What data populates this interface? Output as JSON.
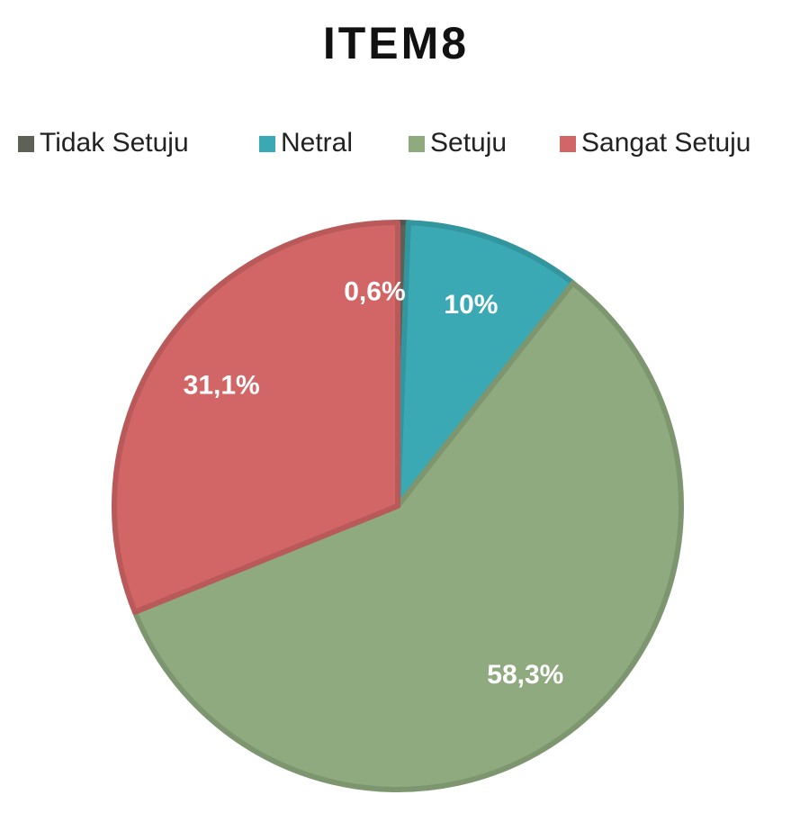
{
  "chart_data": {
    "type": "pie",
    "title": "ITEM8",
    "categories": [
      "Tidak Setuju",
      "Netral",
      "Setuju",
      "Sangat Setuju"
    ],
    "values": [
      0.6,
      10,
      58.3,
      31.1
    ],
    "value_labels": [
      "0,6%",
      "10%",
      "58,3%",
      "31,1%"
    ],
    "colors": [
      "#5d6158",
      "#3aa9b4",
      "#8eaa7e",
      "#d26566"
    ],
    "legend": "top"
  }
}
